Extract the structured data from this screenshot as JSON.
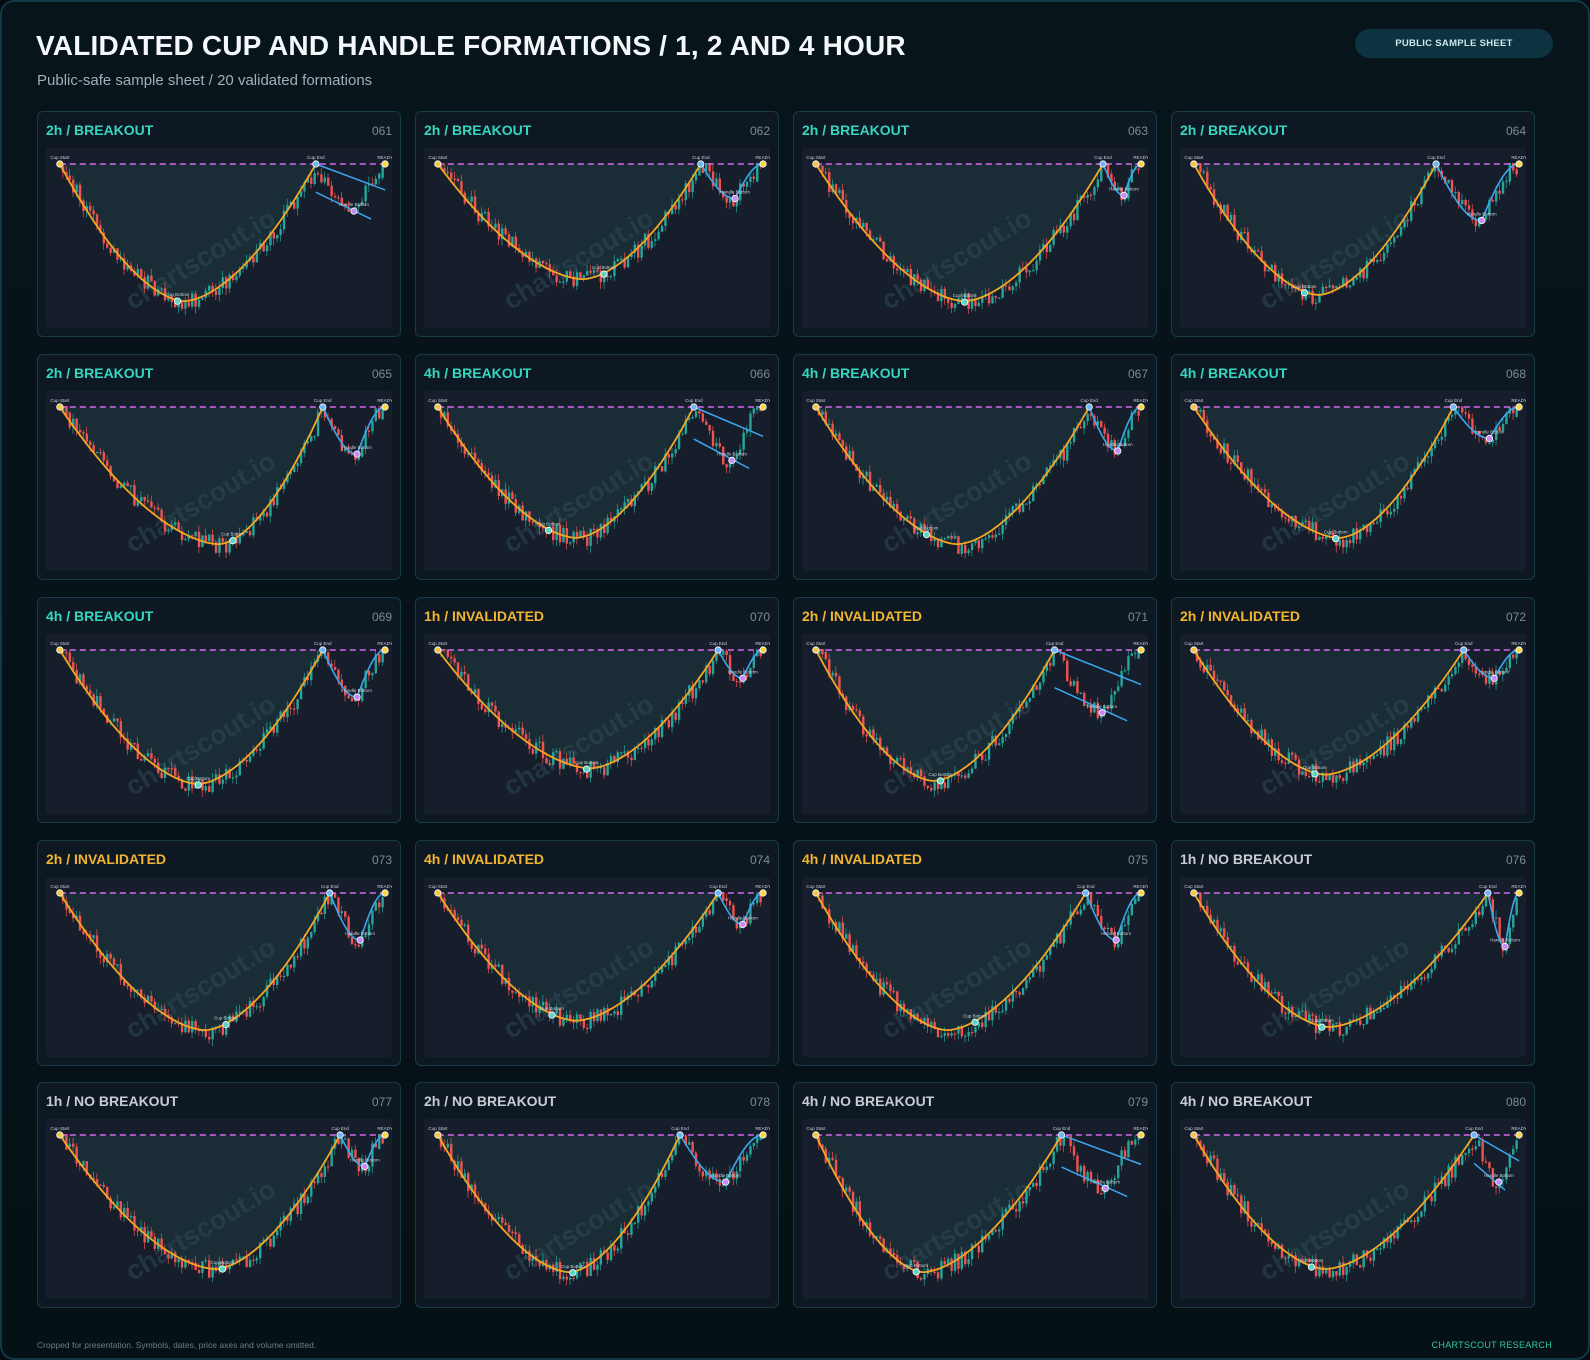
{
  "header": {
    "title": "VALIDATED CUP AND HANDLE FORMATIONS / 1, 2 AND 4 HOUR",
    "subtitle": "Public-safe sample sheet / 20 validated formations",
    "badge": "PUBLIC SAMPLE SHEET"
  },
  "footer": {
    "note": "Cropped for presentation. Symbols, dates, price axes and volume omitted.",
    "brand": "CHARTSCOUT RESEARCH"
  },
  "watermark": "chartscout.io",
  "point_labels": {
    "cup_start": "Cup Start",
    "cup_end": "Cup End",
    "cup_bottom": "Cup Bottom",
    "handle_bottom": "Handle Bottom",
    "ready": "READY"
  },
  "colors": {
    "status_breakout": "#35d7c1",
    "status_invalidated": "#f2b531",
    "status_no_breakout": "#c6ced4",
    "cup_curve": "#f5a623",
    "handle_curve": "#3ba7f0",
    "resistance": "#d46af0",
    "candle_up": "#26a69a",
    "candle_down": "#ef5350"
  },
  "chart_data": [
    {
      "id": "061",
      "label": "2h / BREAKOUT",
      "status": "breakout",
      "type": "candlestick",
      "cup": {
        "start": 0.04,
        "end": 0.78,
        "bottom": 0.4,
        "depth": 0.88,
        "bottom_marker": 0.38
      },
      "handle": {
        "type": "channel",
        "end": 0.98,
        "depth": 0.3
      },
      "seed": 61
    },
    {
      "id": "062",
      "label": "2h / BREAKOUT",
      "status": "breakout",
      "type": "candlestick",
      "cup": {
        "start": 0.04,
        "end": 0.8,
        "bottom": 0.46,
        "depth": 0.74,
        "bottom_marker": 0.52
      },
      "handle": {
        "type": "curve",
        "end": 0.98,
        "depth": 0.22
      },
      "seed": 62
    },
    {
      "id": "063",
      "label": "2h / BREAKOUT",
      "status": "breakout",
      "type": "candlestick",
      "cup": {
        "start": 0.04,
        "end": 0.87,
        "bottom": 0.47,
        "depth": 0.88,
        "bottom_marker": 0.47
      },
      "handle": {
        "type": "curve",
        "end": 0.98,
        "depth": 0.2
      },
      "seed": 63
    },
    {
      "id": "064",
      "label": "2h / BREAKOUT",
      "status": "breakout",
      "type": "candlestick",
      "cup": {
        "start": 0.04,
        "end": 0.74,
        "bottom": 0.4,
        "depth": 0.84,
        "bottom_marker": 0.36
      },
      "handle": {
        "type": "curve",
        "end": 0.98,
        "depth": 0.36
      },
      "seed": 64
    },
    {
      "id": "065",
      "label": "2h / BREAKOUT",
      "status": "breakout",
      "type": "candlestick",
      "cup": {
        "start": 0.04,
        "end": 0.8,
        "bottom": 0.5,
        "depth": 0.88,
        "bottom_marker": 0.54
      },
      "handle": {
        "type": "curve",
        "end": 0.98,
        "depth": 0.3
      },
      "seed": 65
    },
    {
      "id": "066",
      "label": "4h / BREAKOUT",
      "status": "breakout",
      "type": "candlestick",
      "cup": {
        "start": 0.04,
        "end": 0.78,
        "bottom": 0.44,
        "depth": 0.84,
        "bottom_marker": 0.36
      },
      "handle": {
        "type": "channel",
        "end": 0.98,
        "depth": 0.34
      },
      "seed": 66
    },
    {
      "id": "067",
      "label": "4h / BREAKOUT",
      "status": "breakout",
      "type": "candlestick",
      "cup": {
        "start": 0.04,
        "end": 0.83,
        "bottom": 0.45,
        "depth": 0.88,
        "bottom_marker": 0.36
      },
      "handle": {
        "type": "curve",
        "end": 0.98,
        "depth": 0.28
      },
      "seed": 67
    },
    {
      "id": "068",
      "label": "4h / BREAKOUT",
      "status": "breakout",
      "type": "candlestick",
      "cup": {
        "start": 0.04,
        "end": 0.79,
        "bottom": 0.46,
        "depth": 0.84,
        "bottom_marker": 0.45
      },
      "handle": {
        "type": "curve",
        "end": 0.98,
        "depth": 0.2
      },
      "seed": 68
    },
    {
      "id": "069",
      "label": "4h / BREAKOUT",
      "status": "breakout",
      "type": "candlestick",
      "cup": {
        "start": 0.04,
        "end": 0.8,
        "bottom": 0.44,
        "depth": 0.86,
        "bottom_marker": 0.44
      },
      "handle": {
        "type": "curve",
        "end": 0.98,
        "depth": 0.3
      },
      "seed": 69
    },
    {
      "id": "070",
      "label": "1h / INVALIDATED",
      "status": "invalidated",
      "type": "candlestick",
      "cup": {
        "start": 0.04,
        "end": 0.85,
        "bottom": 0.48,
        "depth": 0.76,
        "bottom_marker": 0.47
      },
      "handle": {
        "type": "curve",
        "end": 0.98,
        "depth": 0.18
      },
      "seed": 70
    },
    {
      "id": "071",
      "label": "2h / INVALIDATED",
      "status": "invalidated",
      "type": "candlestick",
      "cup": {
        "start": 0.04,
        "end": 0.73,
        "bottom": 0.38,
        "depth": 0.84,
        "bottom_marker": 0.4
      },
      "handle": {
        "type": "channel",
        "end": 0.98,
        "depth": 0.4
      },
      "seed": 71
    },
    {
      "id": "072",
      "label": "2h / INVALIDATED",
      "status": "invalidated",
      "type": "candlestick",
      "cup": {
        "start": 0.04,
        "end": 0.82,
        "bottom": 0.42,
        "depth": 0.8,
        "bottom_marker": 0.39
      },
      "handle": {
        "type": "curve",
        "end": 0.98,
        "depth": 0.18
      },
      "seed": 72
    },
    {
      "id": "073",
      "label": "2h / INVALIDATED",
      "status": "invalidated",
      "type": "candlestick",
      "cup": {
        "start": 0.04,
        "end": 0.82,
        "bottom": 0.46,
        "depth": 0.88,
        "bottom_marker": 0.52
      },
      "handle": {
        "type": "curve",
        "end": 0.98,
        "depth": 0.3
      },
      "seed": 73
    },
    {
      "id": "074",
      "label": "4h / INVALIDATED",
      "status": "invalidated",
      "type": "candlestick",
      "cup": {
        "start": 0.04,
        "end": 0.85,
        "bottom": 0.44,
        "depth": 0.82,
        "bottom_marker": 0.37
      },
      "handle": {
        "type": "curve",
        "end": 0.98,
        "depth": 0.2
      },
      "seed": 74
    },
    {
      "id": "075",
      "label": "4h / INVALIDATED",
      "status": "invalidated",
      "type": "candlestick",
      "cup": {
        "start": 0.04,
        "end": 0.82,
        "bottom": 0.42,
        "depth": 0.88,
        "bottom_marker": 0.5
      },
      "handle": {
        "type": "curve",
        "end": 0.98,
        "depth": 0.3
      },
      "seed": 75
    },
    {
      "id": "076",
      "label": "1h / NO BREAKOUT",
      "status": "no_breakout",
      "type": "candlestick",
      "cup": {
        "start": 0.04,
        "end": 0.89,
        "bottom": 0.43,
        "depth": 0.86,
        "bottom_marker": 0.41
      },
      "handle": {
        "type": "curve",
        "end": 0.98,
        "depth": 0.34
      },
      "seed": 76
    },
    {
      "id": "077",
      "label": "1h / NO BREAKOUT",
      "status": "no_breakout",
      "type": "candlestick",
      "cup": {
        "start": 0.04,
        "end": 0.85,
        "bottom": 0.49,
        "depth": 0.86,
        "bottom_marker": 0.51
      },
      "handle": {
        "type": "curve",
        "end": 0.98,
        "depth": 0.2
      },
      "seed": 77
    },
    {
      "id": "078",
      "label": "2h / NO BREAKOUT",
      "status": "no_breakout",
      "type": "candlestick",
      "cup": {
        "start": 0.04,
        "end": 0.74,
        "bottom": 0.42,
        "depth": 0.88,
        "bottom_marker": 0.43
      },
      "handle": {
        "type": "curve",
        "end": 0.98,
        "depth": 0.3
      },
      "seed": 78
    },
    {
      "id": "079",
      "label": "4h / NO BREAKOUT",
      "status": "no_breakout",
      "type": "candlestick",
      "cup": {
        "start": 0.04,
        "end": 0.75,
        "bottom": 0.35,
        "depth": 0.88,
        "bottom_marker": 0.33
      },
      "handle": {
        "type": "channel",
        "end": 0.98,
        "depth": 0.34
      },
      "seed": 79
    },
    {
      "id": "080",
      "label": "4h / NO BREAKOUT",
      "status": "no_breakout",
      "type": "candlestick",
      "cup": {
        "start": 0.04,
        "end": 0.85,
        "bottom": 0.42,
        "depth": 0.86,
        "bottom_marker": 0.38
      },
      "handle": {
        "type": "channel",
        "end": 0.98,
        "depth": 0.3
      },
      "seed": 80
    }
  ]
}
